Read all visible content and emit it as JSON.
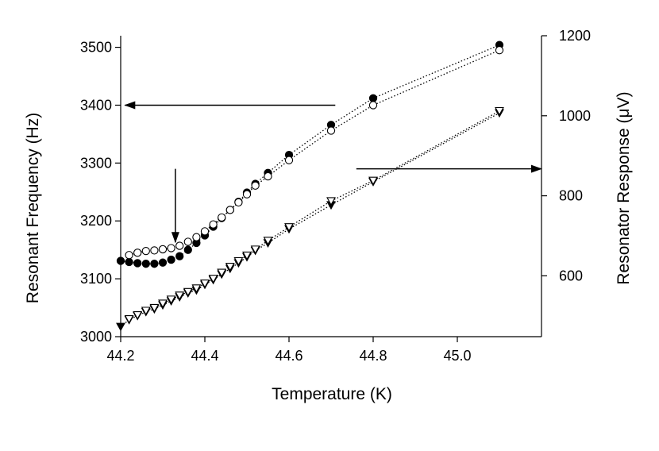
{
  "chart_data": {
    "type": "scatter",
    "title": "",
    "xlabel": "Temperature (K)",
    "ylabel_left": "Resonant Frequency (Hz)",
    "ylabel_right": "Resonator Response (μV)",
    "xlim": [
      44.2,
      45.2
    ],
    "ylim_left": [
      3000,
      3520
    ],
    "ylim_right": [
      448,
      1200
    ],
    "xticks": [
      44.2,
      44.4,
      44.6,
      44.8,
      45.0
    ],
    "xtick_labels": [
      "44.2",
      "44.4",
      "44.6",
      "44.8",
      "45.0"
    ],
    "yticks_left": [
      3000,
      3100,
      3200,
      3300,
      3400,
      3500
    ],
    "ytick_labels_left": [
      "3000",
      "3100",
      "3200",
      "3300",
      "3400",
      "3500"
    ],
    "yticks_right": [
      600,
      800,
      1000,
      1200
    ],
    "ytick_labels_right": [
      "600",
      "800",
      "1000",
      "1200"
    ],
    "grid": false,
    "series": [
      {
        "name": "Resonant frequency, filled circles",
        "axis": "left",
        "marker": "circle",
        "filled": true,
        "dotted_line": true,
        "x": [
          44.2,
          44.22,
          44.24,
          44.26,
          44.28,
          44.3,
          44.32,
          44.34,
          44.36,
          44.38,
          44.4,
          44.42,
          44.44,
          44.46,
          44.48,
          44.5,
          44.52,
          44.55,
          44.6,
          44.7,
          44.8,
          45.1
        ],
        "values": [
          3131,
          3129,
          3127,
          3126,
          3126,
          3128,
          3133,
          3139,
          3150,
          3162,
          3175,
          3190,
          3205,
          3219,
          3233,
          3249,
          3264,
          3283,
          3314,
          3366,
          3412,
          3504
        ]
      },
      {
        "name": "Resonant frequency, open circles",
        "axis": "left",
        "marker": "circle",
        "filled": false,
        "dotted_line": true,
        "x": [
          44.22,
          44.24,
          44.26,
          44.28,
          44.3,
          44.32,
          44.34,
          44.36,
          44.38,
          44.4,
          44.42,
          44.44,
          44.46,
          44.48,
          44.5,
          44.52,
          44.55,
          44.6,
          44.7,
          44.8,
          45.1
        ],
        "values": [
          3141,
          3145,
          3148,
          3149,
          3151,
          3153,
          3157,
          3164,
          3172,
          3182,
          3194,
          3206,
          3219,
          3232,
          3246,
          3261,
          3277,
          3305,
          3356,
          3400,
          3495
        ]
      },
      {
        "name": "Resonator response, filled triangles",
        "axis": "right",
        "marker": "triangle-down",
        "filled": true,
        "dotted_line": true,
        "x": [
          44.2,
          44.22,
          44.24,
          44.26,
          44.28,
          44.3,
          44.32,
          44.34,
          44.36,
          44.38,
          44.4,
          44.42,
          44.44,
          44.46,
          44.48,
          44.5,
          44.52,
          44.55,
          44.6,
          44.7,
          44.8,
          45.1
        ],
        "values": [
          473,
          490,
          500,
          510,
          517,
          527,
          537,
          547,
          557,
          564,
          578,
          590,
          604,
          618,
          632,
          647,
          663,
          682,
          717,
          777,
          835,
          1007
        ]
      },
      {
        "name": "Resonator response, open triangles",
        "axis": "right",
        "marker": "triangle-down",
        "filled": false,
        "dotted_line": true,
        "x": [
          44.22,
          44.24,
          44.26,
          44.28,
          44.3,
          44.32,
          44.34,
          44.36,
          44.38,
          44.4,
          44.42,
          44.44,
          44.46,
          44.48,
          44.5,
          44.52,
          44.55,
          44.6,
          44.7,
          44.8,
          45.1
        ],
        "values": [
          492,
          502,
          513,
          520,
          531,
          541,
          551,
          560,
          569,
          581,
          593,
          608,
          623,
          637,
          651,
          666,
          688,
          722,
          787,
          838,
          1012
        ]
      }
    ],
    "annotations": [
      {
        "type": "arrow",
        "direction": "left",
        "meaning": "closed-circle series refer to left axis",
        "from_x": 44.71,
        "to_x": 44.21,
        "y_left": 3400
      },
      {
        "type": "arrow",
        "direction": "right",
        "meaning": "triangle series refer to right axis",
        "from_x": 44.76,
        "to_x": 45.2,
        "y_left": 3290
      },
      {
        "type": "arrow",
        "direction": "down",
        "meaning": "transition onset",
        "x": 44.33,
        "from_y_left": 3290,
        "to_y_left": 3163
      }
    ]
  }
}
